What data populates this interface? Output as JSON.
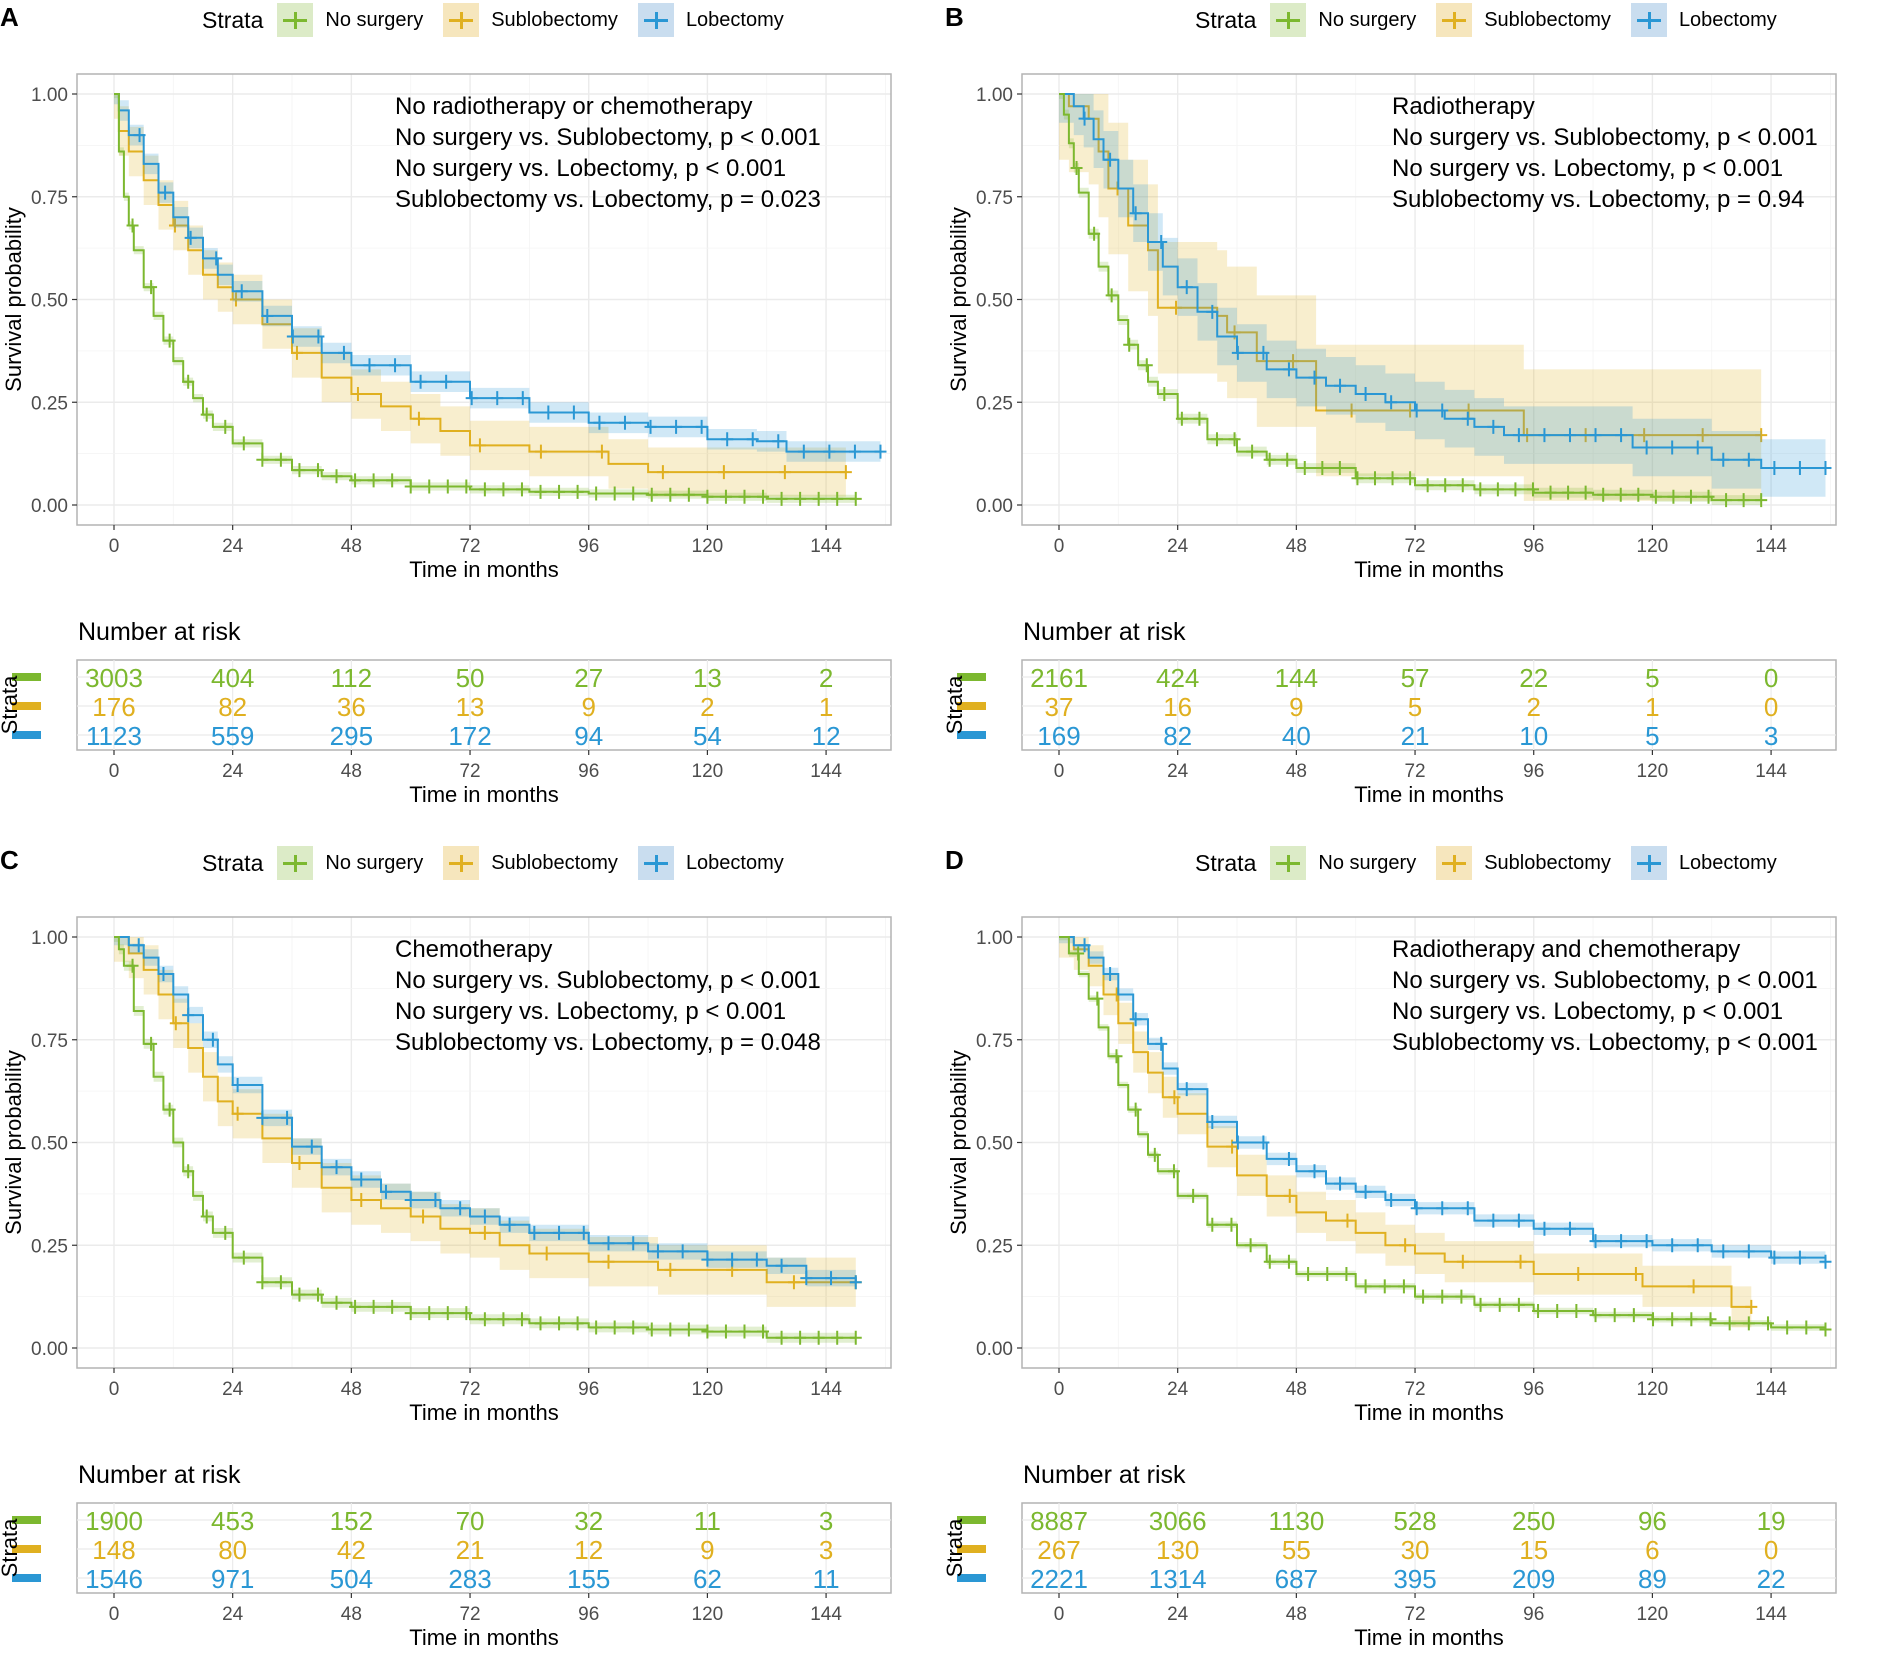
{
  "figure": {
    "legend_title": "Strata",
    "strata": [
      {
        "name": "No surgery",
        "color": "#7cb82f",
        "fill": "#dcebc7"
      },
      {
        "name": "Sublobectomy",
        "color": "#e0b020",
        "fill": "#f6e6bd"
      },
      {
        "name": "Lobectomy",
        "color": "#2a97d4",
        "fill": "#c9ddef"
      }
    ],
    "ylabel": "Survival probability",
    "xlabel": "Time in months",
    "risk_title": "Number at risk",
    "risk_ylabel": "Strata"
  },
  "chart_data": [
    {
      "panel": "A",
      "type": "line",
      "title": "",
      "xlabel": "Time in months",
      "ylabel": "Survival probability",
      "xlim": [
        0,
        156
      ],
      "ylim": [
        0,
        1
      ],
      "x_ticks": [
        0,
        24,
        48,
        72,
        96,
        120,
        144
      ],
      "y_ticks": [
        "0.00",
        "0.25",
        "0.50",
        "0.75",
        "1.00"
      ],
      "grid": true,
      "legend_position": "top",
      "annotations": [
        "No radiotherapy or chemotherapy",
        "No surgery vs. Sublobectomy, p < 0.001",
        "No surgery vs. Lobectomy, p < 0.001",
        "Sublobectomy vs. Lobectomy, p = 0.023"
      ],
      "series": [
        {
          "name": "No surgery",
          "x": [
            0,
            1,
            2,
            3,
            4,
            6,
            8,
            10,
            12,
            14,
            16,
            18,
            20,
            24,
            30,
            36,
            42,
            48,
            60,
            72,
            84,
            96,
            108,
            120,
            132,
            150
          ],
          "y": [
            1.0,
            0.86,
            0.75,
            0.68,
            0.62,
            0.53,
            0.46,
            0.4,
            0.35,
            0.3,
            0.26,
            0.22,
            0.19,
            0.15,
            0.11,
            0.085,
            0.07,
            0.06,
            0.045,
            0.038,
            0.032,
            0.028,
            0.025,
            0.02,
            0.015,
            0.015
          ],
          "ci": 0.01
        },
        {
          "name": "Sublobectomy",
          "x": [
            0,
            1,
            3,
            6,
            9,
            12,
            15,
            18,
            21,
            24,
            30,
            36,
            42,
            48,
            54,
            60,
            66,
            72,
            84,
            96,
            100,
            108,
            120,
            148
          ],
          "y": [
            1.0,
            0.91,
            0.86,
            0.79,
            0.73,
            0.68,
            0.62,
            0.56,
            0.53,
            0.5,
            0.44,
            0.37,
            0.31,
            0.27,
            0.24,
            0.21,
            0.18,
            0.145,
            0.13,
            0.13,
            0.1,
            0.08,
            0.08,
            0.08
          ],
          "ci": 0.06
        },
        {
          "name": "Lobectomy",
          "x": [
            0,
            1,
            3,
            6,
            9,
            12,
            15,
            18,
            21,
            24,
            30,
            36,
            42,
            48,
            60,
            72,
            84,
            96,
            108,
            120,
            130,
            136,
            155
          ],
          "y": [
            1.0,
            0.96,
            0.9,
            0.83,
            0.76,
            0.7,
            0.65,
            0.6,
            0.56,
            0.52,
            0.46,
            0.41,
            0.37,
            0.34,
            0.3,
            0.26,
            0.225,
            0.2,
            0.19,
            0.16,
            0.155,
            0.13,
            0.13
          ],
          "ci": 0.025
        }
      ],
      "risk_table": {
        "times": [
          0,
          24,
          48,
          72,
          96,
          120,
          144
        ],
        "rows": [
          [
            3003,
            404,
            112,
            50,
            27,
            13,
            2
          ],
          [
            176,
            82,
            36,
            13,
            9,
            2,
            1
          ],
          [
            1123,
            559,
            295,
            172,
            94,
            54,
            12
          ]
        ]
      }
    },
    {
      "panel": "B",
      "type": "line",
      "title": "",
      "xlabel": "Time in months",
      "ylabel": "Survival probability",
      "xlim": [
        0,
        156
      ],
      "ylim": [
        0,
        1
      ],
      "x_ticks": [
        0,
        24,
        48,
        72,
        96,
        120,
        144
      ],
      "y_ticks": [
        "0.00",
        "0.25",
        "0.50",
        "0.75",
        "1.00"
      ],
      "grid": true,
      "legend_position": "top",
      "annotations": [
        "Radiotherapy",
        "No surgery vs. Sublobectomy, p < 0.001",
        "No surgery vs. Lobectomy, p < 0.001",
        "Sublobectomy vs. Lobectomy, p = 0.94"
      ],
      "series": [
        {
          "name": "No surgery",
          "x": [
            0,
            1,
            2,
            3,
            4,
            6,
            8,
            10,
            12,
            14,
            16,
            18,
            20,
            24,
            30,
            36,
            42,
            48,
            60,
            72,
            84,
            96,
            108,
            120,
            132,
            142
          ],
          "y": [
            1.0,
            0.95,
            0.88,
            0.82,
            0.76,
            0.66,
            0.58,
            0.51,
            0.45,
            0.39,
            0.34,
            0.3,
            0.27,
            0.21,
            0.16,
            0.13,
            0.11,
            0.09,
            0.065,
            0.048,
            0.038,
            0.03,
            0.025,
            0.02,
            0.012,
            0.012
          ],
          "ci": 0.012
        },
        {
          "name": "Sublobectomy",
          "x": [
            0,
            2,
            6,
            8,
            10,
            14,
            18,
            20,
            28,
            32,
            34,
            40,
            50,
            52,
            60,
            72,
            94,
            110,
            142
          ],
          "y": [
            1.0,
            0.97,
            0.94,
            0.86,
            0.77,
            0.68,
            0.62,
            0.48,
            0.48,
            0.46,
            0.42,
            0.35,
            0.35,
            0.23,
            0.23,
            0.23,
            0.17,
            0.17,
            0.17
          ],
          "ci": 0.16
        },
        {
          "name": "Lobectomy",
          "x": [
            0,
            3,
            5,
            7,
            9,
            12,
            15,
            18,
            21,
            24,
            28,
            32,
            36,
            42,
            48,
            54,
            60,
            66,
            72,
            78,
            84,
            90,
            108,
            116,
            132,
            142,
            155
          ],
          "y": [
            1.0,
            0.97,
            0.94,
            0.89,
            0.84,
            0.77,
            0.71,
            0.64,
            0.58,
            0.53,
            0.47,
            0.41,
            0.37,
            0.33,
            0.31,
            0.29,
            0.27,
            0.25,
            0.23,
            0.21,
            0.19,
            0.17,
            0.17,
            0.14,
            0.11,
            0.09,
            0.09
          ],
          "ci": 0.07
        }
      ],
      "risk_table": {
        "times": [
          0,
          24,
          48,
          72,
          96,
          120,
          144
        ],
        "rows": [
          [
            2161,
            424,
            144,
            57,
            22,
            5,
            0
          ],
          [
            37,
            16,
            9,
            5,
            2,
            1,
            0
          ],
          [
            169,
            82,
            40,
            21,
            10,
            5,
            3
          ]
        ]
      }
    },
    {
      "panel": "C",
      "type": "line",
      "title": "",
      "xlabel": "Time in months",
      "ylabel": "Survival probability",
      "xlim": [
        0,
        156
      ],
      "ylim": [
        0,
        1
      ],
      "x_ticks": [
        0,
        24,
        48,
        72,
        96,
        120,
        144
      ],
      "y_ticks": [
        "0.00",
        "0.25",
        "0.50",
        "0.75",
        "1.00"
      ],
      "grid": true,
      "legend_position": "top",
      "annotations": [
        "Chemotherapy",
        "No surgery vs. Sublobectomy, p < 0.001",
        "No surgery vs. Lobectomy, p < 0.001",
        "Sublobectomy vs. Lobectomy, p = 0.048"
      ],
      "series": [
        {
          "name": "No surgery",
          "x": [
            0,
            1,
            2,
            4,
            6,
            8,
            10,
            12,
            14,
            16,
            18,
            20,
            24,
            30,
            36,
            42,
            48,
            60,
            72,
            84,
            96,
            108,
            120,
            132,
            150
          ],
          "y": [
            1.0,
            0.97,
            0.93,
            0.82,
            0.74,
            0.66,
            0.58,
            0.5,
            0.43,
            0.37,
            0.32,
            0.28,
            0.22,
            0.16,
            0.13,
            0.11,
            0.1,
            0.085,
            0.07,
            0.06,
            0.05,
            0.045,
            0.04,
            0.025,
            0.025
          ],
          "ci": 0.012
        },
        {
          "name": "Sublobectomy",
          "x": [
            0,
            3,
            6,
            9,
            12,
            15,
            18,
            21,
            24,
            30,
            36,
            42,
            48,
            54,
            60,
            66,
            72,
            78,
            84,
            96,
            110,
            126,
            132,
            150
          ],
          "y": [
            1.0,
            0.96,
            0.92,
            0.86,
            0.79,
            0.73,
            0.66,
            0.6,
            0.57,
            0.51,
            0.45,
            0.39,
            0.36,
            0.34,
            0.32,
            0.29,
            0.28,
            0.25,
            0.23,
            0.21,
            0.19,
            0.19,
            0.16,
            0.16
          ],
          "ci": 0.06
        },
        {
          "name": "Lobectomy",
          "x": [
            0,
            3,
            6,
            9,
            12,
            15,
            18,
            21,
            24,
            30,
            36,
            42,
            48,
            54,
            60,
            66,
            72,
            78,
            84,
            96,
            108,
            120,
            132,
            140,
            150
          ],
          "y": [
            1.0,
            0.98,
            0.95,
            0.91,
            0.86,
            0.81,
            0.75,
            0.69,
            0.64,
            0.56,
            0.49,
            0.44,
            0.41,
            0.38,
            0.36,
            0.34,
            0.32,
            0.3,
            0.28,
            0.255,
            0.235,
            0.215,
            0.2,
            0.17,
            0.16
          ],
          "ci": 0.02
        }
      ],
      "risk_table": {
        "times": [
          0,
          24,
          48,
          72,
          96,
          120,
          144
        ],
        "rows": [
          [
            1900,
            453,
            152,
            70,
            32,
            11,
            3
          ],
          [
            148,
            80,
            42,
            21,
            12,
            9,
            3
          ],
          [
            1546,
            971,
            504,
            283,
            155,
            62,
            11
          ]
        ]
      }
    },
    {
      "panel": "D",
      "type": "line",
      "title": "",
      "xlabel": "Time in months",
      "ylabel": "Survival probability",
      "xlim": [
        0,
        156
      ],
      "ylim": [
        0,
        1
      ],
      "x_ticks": [
        0,
        24,
        48,
        72,
        96,
        120,
        144
      ],
      "y_ticks": [
        "0.00",
        "0.25",
        "0.50",
        "0.75",
        "1.00"
      ],
      "grid": true,
      "legend_position": "top",
      "annotations": [
        "Radiotherapy and chemotherapy",
        "No surgery vs. Sublobectomy, p < 0.001",
        "No surgery vs. Lobectomy, p < 0.001",
        "Sublobectomy vs. Lobectomy, p < 0.001"
      ],
      "series": [
        {
          "name": "No surgery",
          "x": [
            0,
            2,
            4,
            6,
            8,
            10,
            12,
            14,
            16,
            18,
            20,
            24,
            30,
            36,
            42,
            48,
            60,
            72,
            84,
            96,
            108,
            120,
            132,
            144,
            155
          ],
          "y": [
            1.0,
            0.96,
            0.91,
            0.85,
            0.78,
            0.71,
            0.64,
            0.58,
            0.52,
            0.47,
            0.43,
            0.37,
            0.3,
            0.25,
            0.21,
            0.18,
            0.15,
            0.125,
            0.105,
            0.09,
            0.08,
            0.07,
            0.06,
            0.05,
            0.045
          ],
          "ci": 0.008
        },
        {
          "name": "Sublobectomy",
          "x": [
            0,
            3,
            6,
            9,
            12,
            15,
            18,
            21,
            24,
            30,
            36,
            42,
            48,
            54,
            60,
            66,
            72,
            78,
            96,
            114,
            118,
            132,
            136,
            140
          ],
          "y": [
            1.0,
            0.97,
            0.93,
            0.86,
            0.79,
            0.72,
            0.67,
            0.61,
            0.57,
            0.49,
            0.42,
            0.37,
            0.33,
            0.31,
            0.28,
            0.25,
            0.23,
            0.21,
            0.18,
            0.18,
            0.15,
            0.15,
            0.1,
            0.1
          ],
          "ci": 0.05
        },
        {
          "name": "Lobectomy",
          "x": [
            0,
            3,
            6,
            9,
            12,
            15,
            18,
            21,
            24,
            30,
            36,
            42,
            48,
            54,
            60,
            66,
            72,
            84,
            96,
            108,
            120,
            132,
            144,
            155
          ],
          "y": [
            1.0,
            0.98,
            0.95,
            0.91,
            0.86,
            0.8,
            0.74,
            0.68,
            0.63,
            0.55,
            0.5,
            0.46,
            0.43,
            0.4,
            0.38,
            0.36,
            0.34,
            0.31,
            0.29,
            0.26,
            0.25,
            0.235,
            0.22,
            0.21
          ],
          "ci": 0.015
        }
      ],
      "risk_table": {
        "times": [
          0,
          24,
          48,
          72,
          96,
          120,
          144
        ],
        "rows": [
          [
            8887,
            3066,
            1130,
            528,
            250,
            96,
            19
          ],
          [
            267,
            130,
            55,
            30,
            15,
            6,
            0
          ],
          [
            2221,
            1314,
            687,
            395,
            209,
            89,
            22
          ]
        ]
      }
    }
  ]
}
